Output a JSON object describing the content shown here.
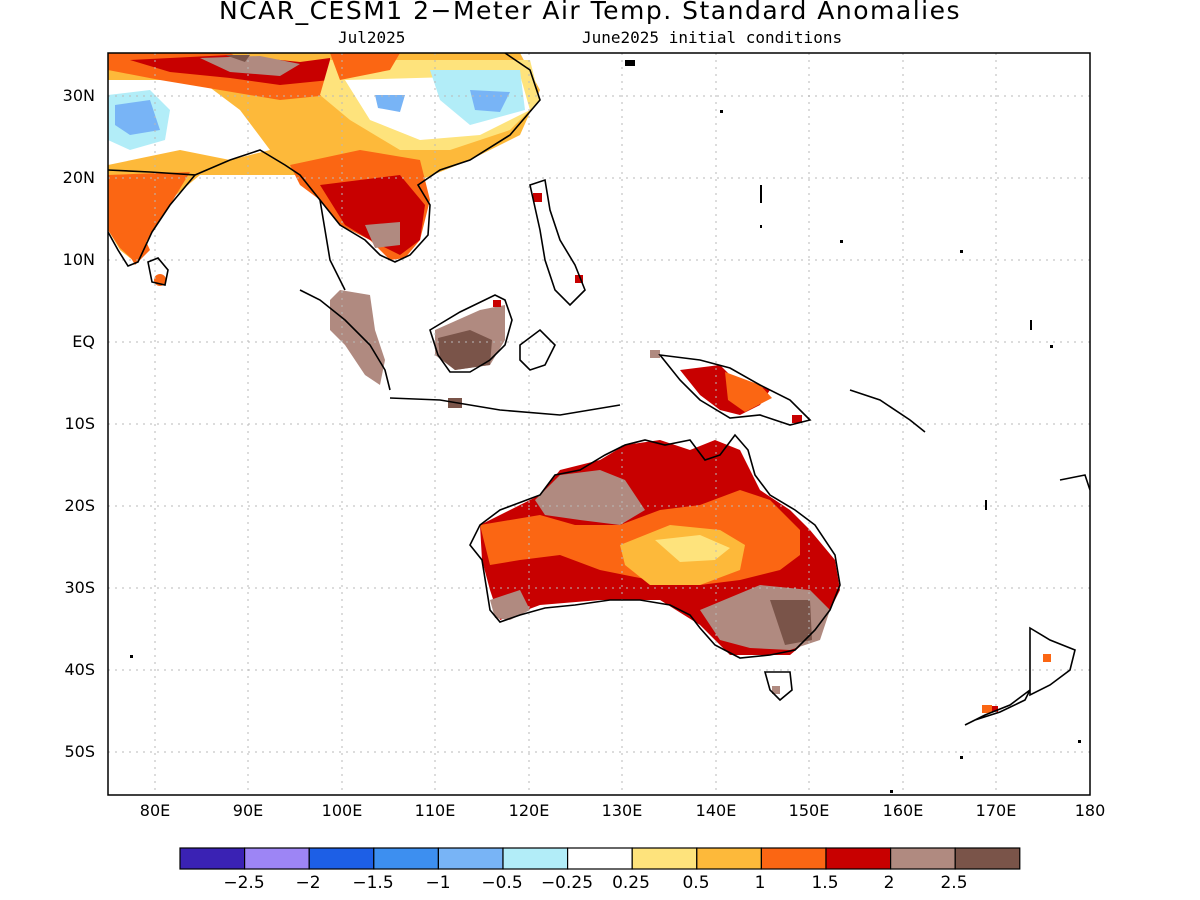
{
  "title": "NCAR_CESM1 2−Meter Air Temp. Standard Anomalies",
  "subtitle_left": "Jul2025",
  "subtitle_right": "June2025 initial conditions",
  "lat_labels": [
    "30N",
    "20N",
    "10N",
    "EQ",
    "10S",
    "20S",
    "30S",
    "40S",
    "50S"
  ],
  "lon_labels": [
    "80E",
    "90E",
    "100E",
    "110E",
    "120E",
    "130E",
    "140E",
    "150E",
    "160E",
    "170E",
    "180"
  ],
  "colorbar": {
    "colors": [
      "#3a22b4",
      "#9d85f5",
      "#1d5fe6",
      "#3d8ff0",
      "#78b4f6",
      "#b2edf8",
      "#ffffff",
      "#fee37c",
      "#fdb93a",
      "#fb6613",
      "#c80000",
      "#b08a80",
      "#7a5449"
    ],
    "labels": [
      "−2.5",
      "−2",
      "−1.5",
      "−1",
      "−0.5",
      "−0.25",
      "0.25",
      "0.5",
      "1",
      "1.5",
      "2",
      "2.5"
    ]
  },
  "map": {
    "region": "Indo-Pacific, 75E–180E, 55S–35N",
    "regions": [
      {
        "name": "Australia",
        "anomaly": "mostly 1 to 2.5, strongest in north and southeast"
      },
      {
        "name": "Indochina",
        "anomaly": "1.5 to 2.5"
      },
      {
        "name": "Tibet / South China",
        "anomaly": "−1 to −0.25"
      },
      {
        "name": "Borneo / Sumatra",
        "anomaly": "2 to 2.5"
      },
      {
        "name": "New Guinea",
        "anomaly": "1 to 2"
      }
    ]
  }
}
